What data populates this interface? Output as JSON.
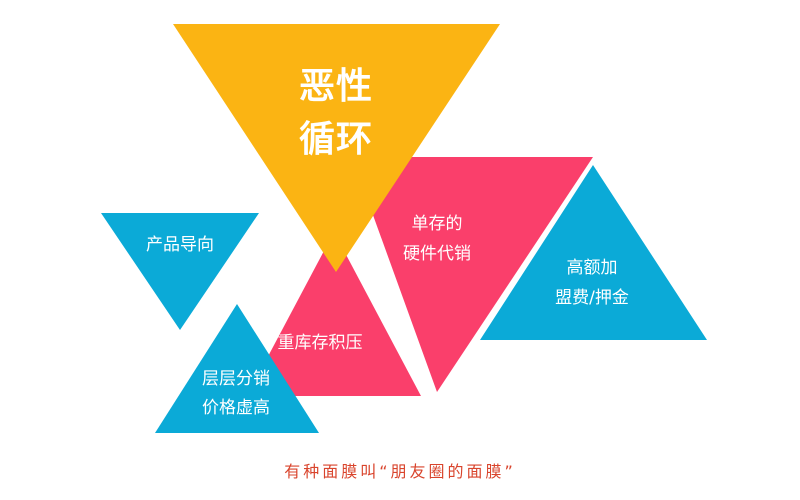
{
  "colors": {
    "yellow": "#FBB413",
    "pink": "#FA3F6B",
    "blue": "#0BAAD7",
    "caption": "#D9442C"
  },
  "diagram": {
    "main": {
      "line1": "恶性",
      "line2": "循环"
    },
    "product_oriented": "产品导向",
    "single_stock": {
      "line1": "单存的",
      "line2": "硬件代销"
    },
    "high_fee": {
      "line1": "高额加",
      "line2": "盟费/押金"
    },
    "heavy_inventory": "重库存积压",
    "multi_level": {
      "line1": "层层分销",
      "line2": "价格虚高"
    }
  },
  "caption": "有种面膜叫“朋友圈的面膜”"
}
